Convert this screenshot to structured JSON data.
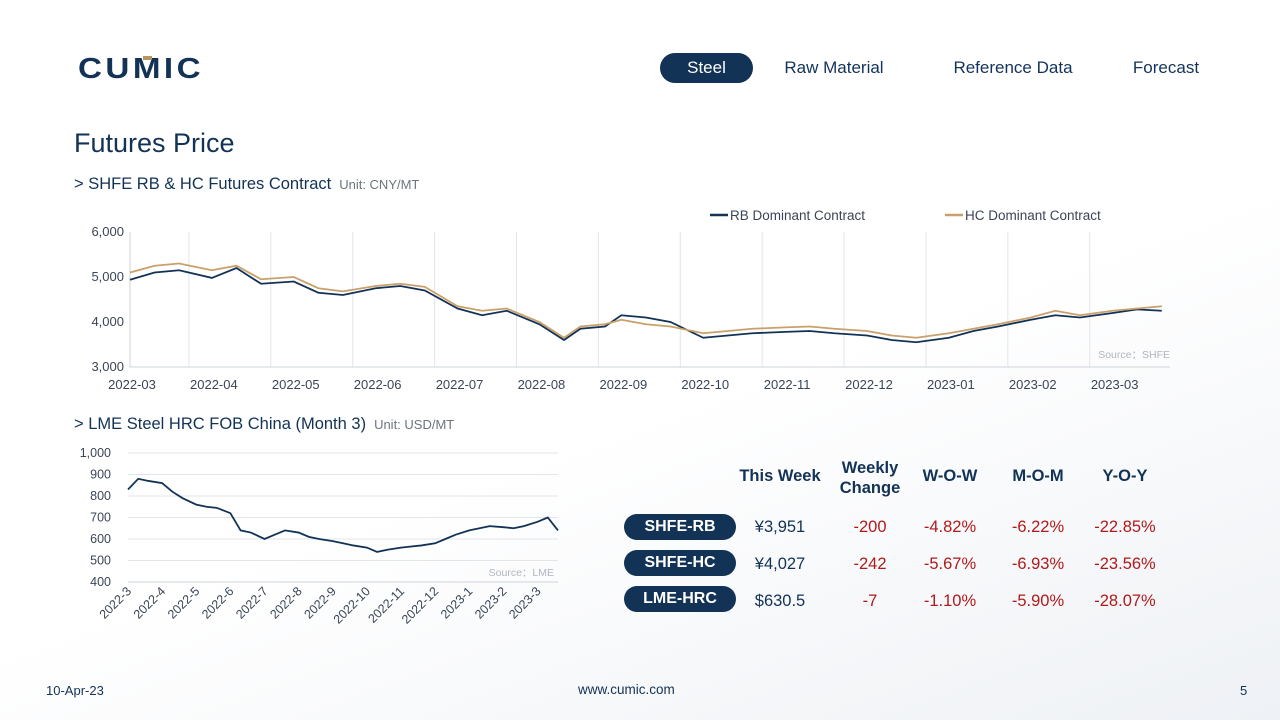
{
  "brand": {
    "name": "CUMIC",
    "color": "#123256",
    "accent": "#b8965a"
  },
  "nav": {
    "items": [
      {
        "label": "Steel",
        "active": true
      },
      {
        "label": "Raw Material",
        "active": false
      },
      {
        "label": "Reference Data",
        "active": false
      },
      {
        "label": "Forecast",
        "active": false
      }
    ]
  },
  "page": {
    "title": "Futures Price"
  },
  "section1": {
    "title": "> SHFE RB & HC Futures Contract",
    "unit": "Unit: CNY/MT"
  },
  "section2": {
    "title": "> LME Steel HRC FOB China (Month 3)",
    "unit": "Unit: USD/MT"
  },
  "chart_data": [
    {
      "type": "line",
      "title": "",
      "xlabel": "",
      "ylabel": "",
      "ylim": [
        3000,
        6000
      ],
      "yticks": [
        "3,000",
        "4,000",
        "5,000",
        "6,000"
      ],
      "xticks": [
        "2022-03",
        "2022-04",
        "2022-05",
        "2022-06",
        "2022-07",
        "2022-08",
        "2022-09",
        "2022-10",
        "2022-11",
        "2022-12",
        "2023-01",
        "2023-02",
        "2023-03"
      ],
      "grid": "vertical",
      "legend": "top",
      "source": "Source：SHFE",
      "x": [
        0,
        0.3,
        0.6,
        1,
        1.3,
        1.6,
        2,
        2.3,
        2.6,
        3,
        3.3,
        3.6,
        4,
        4.3,
        4.6,
        5,
        5.3,
        5.5,
        5.8,
        6,
        6.3,
        6.6,
        7,
        7.3,
        7.6,
        8,
        8.3,
        8.6,
        9,
        9.3,
        9.6,
        10,
        10.3,
        10.6,
        11,
        11.3,
        11.6,
        12,
        12.3,
        12.6
      ],
      "series": [
        {
          "name": "RB Dominant Contract",
          "color": "#123256",
          "values": [
            4940,
            5100,
            5150,
            4980,
            5200,
            4850,
            4900,
            4650,
            4600,
            4750,
            4800,
            4700,
            4300,
            4150,
            4250,
            3950,
            3600,
            3850,
            3900,
            4150,
            4100,
            4000,
            3650,
            3700,
            3750,
            3780,
            3800,
            3750,
            3700,
            3600,
            3550,
            3650,
            3800,
            3900,
            4050,
            4150,
            4100,
            4200,
            4280,
            4250
          ]
        },
        {
          "name": "HC Dominant Contract",
          "color": "#c9a06a",
          "values": [
            5100,
            5250,
            5300,
            5150,
            5250,
            4950,
            5000,
            4750,
            4680,
            4800,
            4850,
            4780,
            4350,
            4250,
            4300,
            4000,
            3650,
            3900,
            3950,
            4050,
            3950,
            3900,
            3750,
            3800,
            3850,
            3880,
            3900,
            3850,
            3800,
            3700,
            3650,
            3750,
            3850,
            3950,
            4100,
            4250,
            4150,
            4250,
            4300,
            4350
          ]
        }
      ]
    },
    {
      "type": "line",
      "title": "",
      "ylim": [
        400,
        1000
      ],
      "yticks": [
        "400",
        "500",
        "600",
        "700",
        "800",
        "900",
        "1,000"
      ],
      "xticks": [
        "2022-3",
        "2022-4",
        "2022-5",
        "2022-6",
        "2022-7",
        "2022-8",
        "2022-9",
        "2022-10",
        "2022-11",
        "2022-12",
        "2023-1",
        "2023-2",
        "2023-3"
      ],
      "grid": "horizontal",
      "source": "Source：LME",
      "x": [
        0,
        0.3,
        0.6,
        1,
        1.3,
        1.6,
        2,
        2.3,
        2.6,
        3,
        3.3,
        3.6,
        4,
        4.3,
        4.6,
        5,
        5.3,
        5.6,
        6,
        6.3,
        6.6,
        7,
        7.3,
        7.6,
        8,
        8.3,
        8.6,
        9,
        9.3,
        9.6,
        10,
        10.3,
        10.6,
        11,
        11.3,
        11.6,
        12,
        12.3,
        12.6
      ],
      "series": [
        {
          "name": "LME Steel HRC FOB China (Month 3)",
          "color": "#123256",
          "values": [
            830,
            880,
            870,
            860,
            820,
            790,
            760,
            750,
            745,
            720,
            640,
            630,
            600,
            620,
            640,
            630,
            610,
            600,
            590,
            580,
            570,
            560,
            540,
            550,
            560,
            565,
            570,
            580,
            600,
            620,
            640,
            650,
            660,
            655,
            650,
            660,
            680,
            700,
            640
          ]
        }
      ]
    }
  ],
  "summary": {
    "headers": {
      "this_week": "This Week",
      "weekly_change_line1": "Weekly",
      "weekly_change_line2": "Change",
      "wow": "W-O-W",
      "mom": "M-O-M",
      "yoy": "Y-O-Y"
    },
    "rows": [
      {
        "label": "SHFE-RB",
        "this_week": "¥3,951",
        "weekly_change": "-200",
        "wow": "-4.82%",
        "mom": "-6.22%",
        "yoy": "-22.85%"
      },
      {
        "label": "SHFE-HC",
        "this_week": "¥4,027",
        "weekly_change": "-242",
        "wow": "-5.67%",
        "mom": "-6.93%",
        "yoy": "-23.56%"
      },
      {
        "label": "LME-HRC",
        "this_week": "$630.5",
        "weekly_change": "-7",
        "wow": "-1.10%",
        "mom": "-5.90%",
        "yoy": "-28.07%"
      }
    ]
  },
  "footer": {
    "date": "10-Apr-23",
    "url": "www.cumic.com",
    "page": "5"
  }
}
